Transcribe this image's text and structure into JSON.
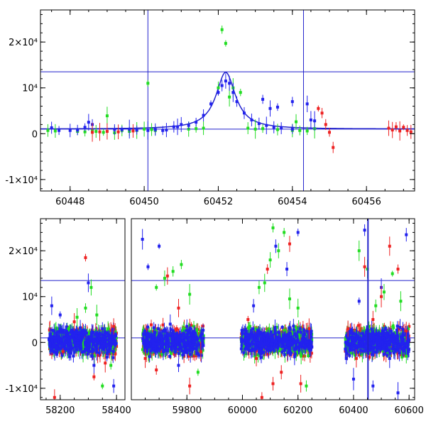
{
  "chart_data": [
    {
      "type": "scatter",
      "panel": "top",
      "xlim": [
        60447.2,
        60457.3
      ],
      "ylim": [
        -12500,
        27000
      ],
      "x_ticks": [
        {
          "value": 60448,
          "label": "60448"
        },
        {
          "value": 60450,
          "label": "60450"
        },
        {
          "value": 60452,
          "label": "60452"
        },
        {
          "value": 60454,
          "label": "60454"
        },
        {
          "value": 60456,
          "label": "60456"
        }
      ],
      "y_ticks": [
        {
          "value": 20000,
          "label": "2×10⁴"
        },
        {
          "value": 10000,
          "label": "10⁴"
        },
        {
          "value": 0,
          "label": "0"
        },
        {
          "value": -10000,
          "label": "-1×10⁴"
        }
      ],
      "hlines": [
        13500,
        1000
      ],
      "vlines": [
        60450.1,
        60454.3
      ],
      "model_curve": {
        "baseline": 1000,
        "peak_x": 60452.2,
        "peak_y": 13400,
        "width": 0.32
      },
      "colors": {
        "blue": "#2222ee",
        "green": "#22dd22",
        "red": "#ee2222",
        "lines": "#2222cc"
      },
      "series": [
        {
          "color": "green",
          "points": [
            [
              60447.4,
              700
            ],
            [
              60447.6,
              600
            ],
            [
              60448.2,
              500
            ],
            [
              60448.4,
              400
            ],
            [
              60448.6,
              600
            ],
            [
              60448.7,
              500
            ],
            [
              60448.9,
              300
            ],
            [
              60449.0,
              3900
            ],
            [
              60449.2,
              200
            ],
            [
              60449.4,
              700
            ],
            [
              60449.6,
              500
            ],
            [
              60449.8,
              700
            ],
            [
              60450.0,
              1000
            ],
            [
              60450.1,
              11000
            ],
            [
              60450.2,
              900
            ],
            [
              60450.3,
              700
            ],
            [
              60451.2,
              1000
            ],
            [
              60451.4,
              1100
            ],
            [
              60451.6,
              1200
            ],
            [
              60452.0,
              10000
            ],
            [
              60452.1,
              22700
            ],
            [
              60452.2,
              19700
            ],
            [
              60452.3,
              8000
            ],
            [
              60452.4,
              10000
            ],
            [
              60452.6,
              9000
            ],
            [
              60452.8,
              1200
            ],
            [
              60453.0,
              1000
            ],
            [
              60453.2,
              1100
            ],
            [
              60453.6,
              900
            ],
            [
              60454.0,
              700
            ],
            [
              60454.1,
              2600
            ],
            [
              60454.2,
              700
            ],
            [
              60454.4,
              600
            ],
            [
              60454.6,
              1100
            ]
          ]
        },
        {
          "color": "blue",
          "points": [
            [
              60447.5,
              1300
            ],
            [
              60447.7,
              700
            ],
            [
              60448.0,
              700
            ],
            [
              60448.2,
              800
            ],
            [
              60448.4,
              1400
            ],
            [
              60448.5,
              2500
            ],
            [
              60448.6,
              2000
            ],
            [
              60449.2,
              900
            ],
            [
              60449.4,
              900
            ],
            [
              60449.6,
              1000
            ],
            [
              60449.8,
              800
            ],
            [
              60450.1,
              700
            ],
            [
              60450.3,
              900
            ],
            [
              60450.5,
              700
            ],
            [
              60450.6,
              800
            ],
            [
              60450.8,
              1500
            ],
            [
              60450.9,
              1500
            ],
            [
              60451.0,
              2000
            ],
            [
              60451.2,
              1800
            ],
            [
              60451.4,
              2500
            ],
            [
              60451.6,
              4000
            ],
            [
              60451.8,
              6500
            ],
            [
              60452.0,
              9000
            ],
            [
              60452.1,
              10500
            ],
            [
              60452.2,
              11500
            ],
            [
              60452.3,
              11000
            ],
            [
              60452.4,
              9000
            ],
            [
              60452.5,
              7000
            ],
            [
              60452.7,
              4500
            ],
            [
              60452.9,
              3000
            ],
            [
              60453.1,
              2200
            ],
            [
              60453.3,
              1800
            ],
            [
              60453.5,
              1400
            ],
            [
              60453.7,
              1200
            ],
            [
              60454.0,
              1000
            ],
            [
              60453.2,
              7500
            ],
            [
              60453.4,
              5500
            ],
            [
              60453.6,
              5800
            ],
            [
              60454.0,
              7000
            ],
            [
              60454.4,
              6500
            ],
            [
              60454.5,
              3000
            ],
            [
              60454.6,
              2800
            ]
          ]
        },
        {
          "color": "red",
          "points": [
            [
              60448.6,
              300
            ],
            [
              60448.8,
              400
            ],
            [
              60449.0,
              500
            ],
            [
              60449.3,
              400
            ],
            [
              60449.7,
              600
            ],
            [
              60454.7,
              5500
            ],
            [
              60454.8,
              4500
            ],
            [
              60454.9,
              2000
            ],
            [
              60455.0,
              300
            ],
            [
              60455.1,
              -3000
            ],
            [
              60456.6,
              1200
            ],
            [
              60456.7,
              800
            ],
            [
              60456.8,
              1500
            ],
            [
              60456.9,
              600
            ],
            [
              60457.0,
              1400
            ],
            [
              60457.1,
              700
            ],
            [
              60457.2,
              400
            ]
          ]
        }
      ]
    },
    {
      "type": "scatter",
      "panel": "bottom",
      "broken_x_axis": true,
      "segments": [
        [
          58130,
          58430
        ],
        [
          59600,
          60620
        ]
      ],
      "ylim": [
        -12500,
        27000
      ],
      "x_ticks": [
        {
          "value": 58200,
          "label": "58200"
        },
        {
          "value": 58400,
          "label": "58400"
        },
        {
          "value": 59800,
          "label": "59800"
        },
        {
          "value": 60000,
          "label": "60000"
        },
        {
          "value": 60200,
          "label": "60200"
        },
        {
          "value": 60400,
          "label": "60400"
        },
        {
          "value": 60600,
          "label": "60600"
        }
      ],
      "y_ticks": [
        {
          "value": 20000,
          "label": "2×10⁴"
        },
        {
          "value": 10000,
          "label": "10⁴"
        },
        {
          "value": 0,
          "label": "0"
        },
        {
          "value": -10000,
          "label": "-1×10⁴"
        }
      ],
      "hlines": [
        13500,
        1000
      ],
      "vlines": [
        60452
      ],
      "observing_seasons": [
        [
          58160,
          58400
        ],
        [
          59640,
          59860
        ],
        [
          59995,
          60250
        ],
        [
          60370,
          60600
        ]
      ],
      "colors": {
        "blue": "#2222ee",
        "green": "#22dd22",
        "red": "#ee2222",
        "lines": "#2222cc"
      },
      "series": [
        {
          "color": "green",
          "points": [
            [
              58230,
              3000
            ],
            [
              58260,
              5500
            ],
            [
              58290,
              7500
            ],
            [
              58310,
              12000
            ],
            [
              58330,
              6000
            ],
            [
              58350,
              -9500
            ],
            [
              58380,
              -5000
            ],
            [
              59690,
              12000
            ],
            [
              59720,
              14000
            ],
            [
              59750,
              15500
            ],
            [
              59780,
              17000
            ],
            [
              59810,
              10500
            ],
            [
              59840,
              -6500
            ],
            [
              60060,
              12000
            ],
            [
              60080,
              13000
            ],
            [
              60100,
              18000
            ],
            [
              60110,
              25000
            ],
            [
              60130,
              20000
            ],
            [
              60150,
              24000
            ],
            [
              60170,
              9500
            ],
            [
              60200,
              7500
            ],
            [
              60230,
              -9500
            ],
            [
              60420,
              20000
            ],
            [
              60450,
              16000
            ],
            [
              60480,
              8000
            ],
            [
              60510,
              11000
            ],
            [
              60540,
              15000
            ],
            [
              60570,
              9000
            ],
            [
              60590,
              -3000
            ]
          ]
        },
        {
          "color": "blue",
          "points": [
            [
              58170,
              8000
            ],
            [
              58200,
              6000
            ],
            [
              58230,
              -2000
            ],
            [
              58270,
              -1500
            ],
            [
              58300,
              13000
            ],
            [
              58320,
              -5000
            ],
            [
              58350,
              3000
            ],
            [
              58390,
              -9500
            ],
            [
              59640,
              22500
            ],
            [
              59660,
              16500
            ],
            [
              59700,
              21000
            ],
            [
              59740,
              4000
            ],
            [
              59770,
              -5000
            ],
            [
              59800,
              3500
            ],
            [
              59840,
              -2500
            ],
            [
              60040,
              8000
            ],
            [
              60070,
              -1500
            ],
            [
              60120,
              21000
            ],
            [
              60160,
              16000
            ],
            [
              60200,
              24000
            ],
            [
              60250,
              -1000
            ],
            [
              60400,
              -8000
            ],
            [
              60420,
              9000
            ],
            [
              60440,
              24500
            ],
            [
              60470,
              -9500
            ],
            [
              60500,
              12000
            ],
            [
              60530,
              -3500
            ],
            [
              60560,
              -11000
            ],
            [
              60590,
              23500
            ]
          ]
        },
        {
          "color": "red",
          "points": [
            [
              58180,
              -12000
            ],
            [
              58210,
              -2000
            ],
            [
              58250,
              4500
            ],
            [
              58290,
              18500
            ],
            [
              58320,
              -7500
            ],
            [
              58360,
              -4500
            ],
            [
              58390,
              3500
            ],
            [
              59650,
              -3500
            ],
            [
              59690,
              -6000
            ],
            [
              59730,
              14500
            ],
            [
              59770,
              7500
            ],
            [
              59810,
              -9500
            ],
            [
              59850,
              -2000
            ],
            [
              60020,
              5000
            ],
            [
              60050,
              -3500
            ],
            [
              60070,
              -12000
            ],
            [
              60090,
              16000
            ],
            [
              60110,
              -9000
            ],
            [
              60140,
              -6500
            ],
            [
              60170,
              21500
            ],
            [
              60210,
              -9000
            ],
            [
              60240,
              3000
            ],
            [
              60380,
              3000
            ],
            [
              60410,
              -3500
            ],
            [
              60440,
              16500
            ],
            [
              60470,
              5000
            ],
            [
              60500,
              10000
            ],
            [
              60530,
              21000
            ],
            [
              60560,
              16000
            ],
            [
              60590,
              2500
            ]
          ]
        }
      ]
    }
  ]
}
